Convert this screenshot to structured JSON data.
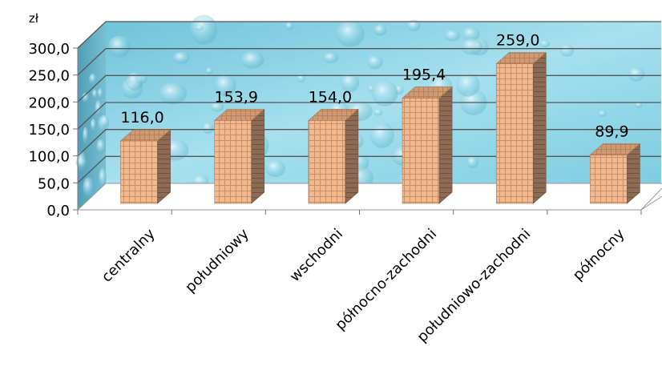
{
  "chart_data": {
    "type": "bar",
    "title": "",
    "unit_label": "zł",
    "categories": [
      "centralny",
      "południowy",
      "wschodni",
      "północno-zachodni",
      "południowo-zachodni",
      "północny"
    ],
    "values": [
      116.0,
      153.9,
      154.0,
      195.4,
      259.0,
      89.9
    ],
    "value_labels": [
      "116,0",
      "153,9",
      "154,0",
      "195,4",
      "259,0",
      "89,9"
    ],
    "y_ticks": [
      "0,0",
      "50,0",
      "100,0",
      "150,0",
      "200,0",
      "250,0",
      "300,0"
    ],
    "ylim": [
      0,
      300
    ],
    "grid": true,
    "legend": "none",
    "style": "3d-column",
    "colors": {
      "bar_face": "#f2b98e",
      "bar_side": "#8c6a54",
      "bar_top": "#d4a07a",
      "bar_grid": "#c58a60",
      "wall": "#8fd3e6",
      "floor": "#ffffff"
    }
  }
}
